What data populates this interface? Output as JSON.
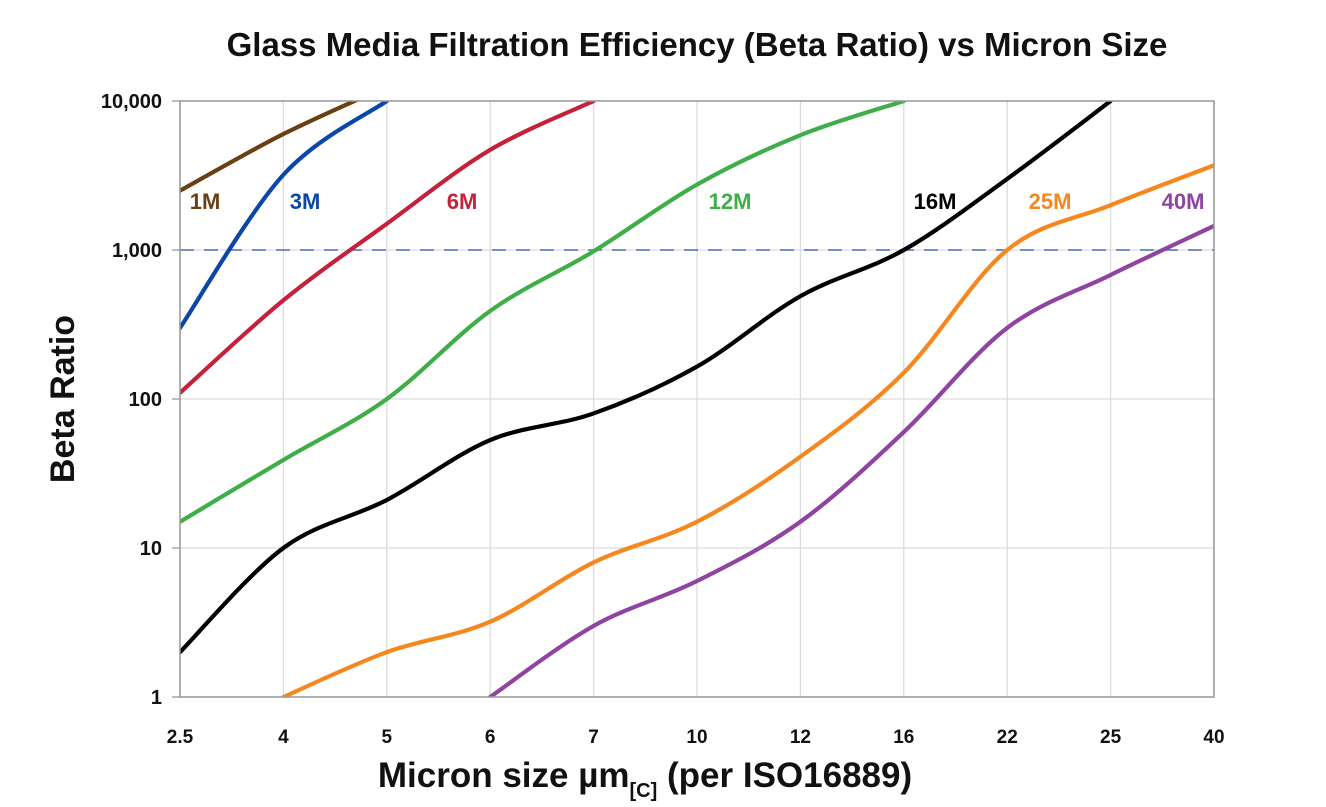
{
  "chart_data": {
    "type": "line",
    "title": "Glass Media Filtration Efficiency (Beta Ratio) vs Micron Size",
    "xlabel": "Micron size µm",
    "xlabel_subscript": "[C]",
    "xlabel_suffix": "(per ISO16889)",
    "ylabel": "Beta Ratio",
    "y_scale": "log",
    "ylim": [
      1,
      10000
    ],
    "grid": true,
    "categories": [
      "2.5",
      "4",
      "5",
      "6",
      "7",
      "10",
      "12",
      "16",
      "22",
      "25",
      "40"
    ],
    "y_ticks": [
      {
        "value": 1,
        "label": "1"
      },
      {
        "value": 10,
        "label": "10"
      },
      {
        "value": 100,
        "label": "100"
      },
      {
        "value": 1000,
        "label": "1,000"
      },
      {
        "value": 10000,
        "label": "10,000"
      }
    ],
    "reference_line": {
      "value": 1000,
      "style": "dashed",
      "color": "#4a6fb0"
    },
    "series": [
      {
        "name": "1M",
        "color": "#6b3f14",
        "values": [
          2500,
          6000,
          12500,
          null,
          null,
          null,
          null,
          null,
          null,
          null,
          null
        ]
      },
      {
        "name": "3M",
        "color": "#0a47a9",
        "values": [
          300,
          3200,
          10000,
          null,
          null,
          null,
          null,
          null,
          null,
          null,
          null
        ]
      },
      {
        "name": "6M",
        "color": "#c4223a",
        "values": [
          110,
          460,
          1500,
          4700,
          10000,
          null,
          null,
          null,
          null,
          null,
          null
        ]
      },
      {
        "name": "12M",
        "color": "#3fae49",
        "values": [
          15,
          39,
          100,
          390,
          980,
          2750,
          5900,
          10000,
          null,
          null,
          null
        ]
      },
      {
        "name": "16M",
        "color": "#000000",
        "values": [
          2,
          10,
          21,
          53,
          80,
          165,
          490,
          1000,
          3000,
          10000,
          null
        ]
      },
      {
        "name": "25M",
        "color": "#f5871f",
        "values": [
          null,
          1,
          2,
          3.2,
          8,
          15,
          41,
          150,
          1000,
          2000,
          3700
        ]
      },
      {
        "name": "40M",
        "color": "#8e44a0",
        "values": [
          null,
          null,
          null,
          1,
          3,
          6,
          15,
          60,
          300,
          680,
          1450
        ]
      }
    ]
  }
}
